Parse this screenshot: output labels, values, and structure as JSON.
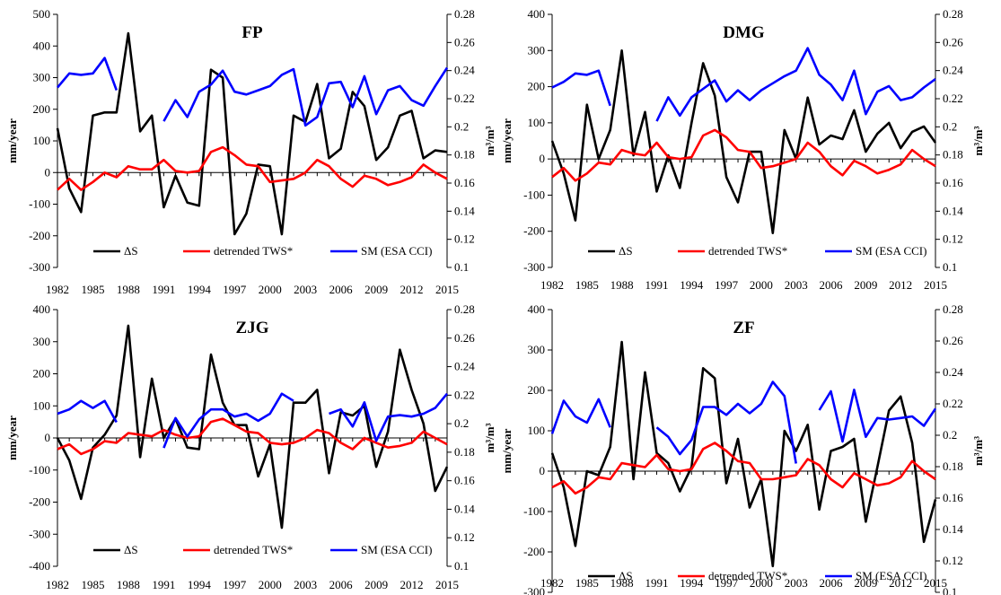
{
  "chart_data": [
    {
      "type": "line",
      "title": "FP",
      "ylabel": "mm/year",
      "y2label": "m³/m³",
      "ylim": [
        -300,
        500
      ],
      "yticks": [
        "-300",
        "-200",
        "-100",
        "0",
        "100",
        "200",
        "300",
        "400",
        "500"
      ],
      "y2lim": [
        0.1,
        0.28
      ],
      "y2ticks": [
        "0.1",
        "0.12",
        "0.14",
        "0.16",
        "0.18",
        "0.2",
        "0.22",
        "0.24",
        "0.26",
        "0.28"
      ],
      "x": [
        1982,
        1983,
        1984,
        1985,
        1986,
        1987,
        1988,
        1989,
        1990,
        1991,
        1992,
        1993,
        1994,
        1995,
        1996,
        1997,
        1998,
        1999,
        2000,
        2001,
        2002,
        2003,
        2004,
        2005,
        2006,
        2007,
        2008,
        2009,
        2010,
        2011,
        2012,
        2013,
        2014,
        2015
      ],
      "xticks": [
        "1982",
        "1985",
        "1988",
        "1991",
        "1994",
        "1997",
        "2000",
        "2003",
        "2006",
        "2009",
        "2012",
        "2015"
      ],
      "series": [
        {
          "name": "ΔS",
          "axis": "left",
          "color": "#000000",
          "values": [
            140,
            -50,
            -125,
            180,
            190,
            190,
            440,
            130,
            180,
            -110,
            -10,
            -95,
            -105,
            325,
            300,
            -195,
            -130,
            25,
            20,
            -195,
            180,
            160,
            280,
            45,
            75,
            255,
            210,
            40,
            80,
            180,
            195,
            45,
            70,
            65
          ]
        },
        {
          "name": "detrended TWS*",
          "axis": "left",
          "color": "#ff0000",
          "values": [
            -55,
            -20,
            -55,
            -30,
            0,
            -15,
            20,
            10,
            10,
            40,
            5,
            0,
            5,
            65,
            80,
            55,
            25,
            20,
            -30,
            -25,
            -20,
            0,
            40,
            20,
            -20,
            -45,
            -10,
            -20,
            -40,
            -30,
            -15,
            25,
            0,
            -20
          ]
        },
        {
          "name": "SM (ESA CCI)",
          "axis": "right",
          "color": "#0000ff",
          "values": [
            0.228,
            0.238,
            0.237,
            0.238,
            0.249,
            0.226,
            null,
            null,
            null,
            0.204,
            0.219,
            0.207,
            0.225,
            0.23,
            0.24,
            0.225,
            0.223,
            0.226,
            0.229,
            0.237,
            0.241,
            0.201,
            0.207,
            0.231,
            0.232,
            0.214,
            0.236,
            0.209,
            0.226,
            0.229,
            0.219,
            0.215,
            0.229,
            0.242
          ]
        }
      ],
      "legend": "bottom"
    },
    {
      "type": "line",
      "title": "DMG",
      "ylabel": "mm/year",
      "y2label": "m³/m³",
      "ylim": [
        -300,
        400
      ],
      "yticks": [
        "-300",
        "-200",
        "-100",
        "0",
        "100",
        "200",
        "300",
        "400"
      ],
      "y2lim": [
        0.1,
        0.28
      ],
      "y2ticks": [
        "0.1",
        "0.12",
        "0.14",
        "0.16",
        "0.18",
        "0.2",
        "0.22",
        "0.24",
        "0.26",
        "0.28"
      ],
      "x": [
        1982,
        1983,
        1984,
        1985,
        1986,
        1987,
        1988,
        1989,
        1990,
        1991,
        1992,
        1993,
        1994,
        1995,
        1996,
        1997,
        1998,
        1999,
        2000,
        2001,
        2002,
        2003,
        2004,
        2005,
        2006,
        2007,
        2008,
        2009,
        2010,
        2011,
        2012,
        2013,
        2014,
        2015
      ],
      "xticks": [
        "1982",
        "1985",
        "1988",
        "1991",
        "1994",
        "1997",
        "2000",
        "2003",
        "2006",
        "2009",
        "2012",
        "2015"
      ],
      "series": [
        {
          "name": "ΔS",
          "axis": "left",
          "color": "#000000",
          "values": [
            50,
            -40,
            -170,
            150,
            0,
            80,
            300,
            10,
            130,
            -90,
            10,
            -80,
            100,
            265,
            175,
            -50,
            -120,
            20,
            20,
            -205,
            80,
            0,
            170,
            40,
            65,
            55,
            135,
            20,
            70,
            100,
            30,
            75,
            90,
            45
          ]
        },
        {
          "name": "detrended TWS*",
          "axis": "left",
          "color": "#ff0000",
          "values": [
            -50,
            -25,
            -60,
            -40,
            -10,
            -15,
            25,
            15,
            10,
            45,
            5,
            0,
            5,
            65,
            80,
            60,
            25,
            20,
            -25,
            -20,
            -10,
            0,
            45,
            20,
            -20,
            -45,
            -5,
            -20,
            -40,
            -30,
            -15,
            25,
            0,
            -20
          ]
        },
        {
          "name": "SM (ESA CCI)",
          "axis": "right",
          "color": "#0000ff",
          "values": [
            0.228,
            0.232,
            0.238,
            0.237,
            0.24,
            0.215,
            null,
            null,
            null,
            0.204,
            0.221,
            0.208,
            0.221,
            0.227,
            0.233,
            0.218,
            0.226,
            0.219,
            0.226,
            0.231,
            0.236,
            0.24,
            0.256,
            0.237,
            0.23,
            0.219,
            0.24,
            0.209,
            0.225,
            0.229,
            0.219,
            0.221,
            0.228,
            0.234
          ]
        }
      ],
      "legend": "bottom"
    },
    {
      "type": "line",
      "title": "ZJG",
      "ylabel": "mm/year",
      "y2label": "m³/m³",
      "ylim": [
        -400,
        400
      ],
      "yticks": [
        "-400",
        "-300",
        "-200",
        "-100",
        "0",
        "100",
        "200",
        "300",
        "400"
      ],
      "y2lim": [
        0.1,
        0.28
      ],
      "y2ticks": [
        "0.1",
        "0.12",
        "0.14",
        "0.16",
        "0.18",
        "0.2",
        "0.22",
        "0.24",
        "0.26",
        "0.28"
      ],
      "x": [
        1982,
        1983,
        1984,
        1985,
        1986,
        1987,
        1988,
        1989,
        1990,
        1991,
        1992,
        1993,
        1994,
        1995,
        1996,
        1997,
        1998,
        1999,
        2000,
        2001,
        2002,
        2003,
        2004,
        2005,
        2006,
        2007,
        2008,
        2009,
        2010,
        2011,
        2012,
        2013,
        2014,
        2015
      ],
      "xticks": [
        "1982",
        "1985",
        "1988",
        "1991",
        "1994",
        "1997",
        "2000",
        "2003",
        "2006",
        "2009",
        "2012",
        "2015"
      ],
      "series": [
        {
          "name": "ΔS",
          "axis": "left",
          "color": "#000000",
          "values": [
            0,
            -70,
            -190,
            -30,
            10,
            70,
            350,
            -60,
            185,
            0,
            60,
            -30,
            -35,
            260,
            110,
            40,
            40,
            -120,
            -20,
            -280,
            110,
            110,
            150,
            -110,
            80,
            70,
            100,
            -90,
            20,
            275,
            150,
            45,
            -165,
            -90
          ]
        },
        {
          "name": "detrended TWS*",
          "axis": "left",
          "color": "#ff0000",
          "values": [
            -35,
            -20,
            -50,
            -35,
            -10,
            -15,
            15,
            10,
            5,
            25,
            10,
            0,
            5,
            50,
            60,
            40,
            20,
            15,
            -15,
            -20,
            -15,
            0,
            25,
            15,
            -15,
            -35,
            0,
            -15,
            -30,
            -25,
            -15,
            20,
            0,
            -20
          ]
        },
        {
          "name": "SM (ESA CCI)",
          "axis": "right",
          "color": "#0000ff",
          "values": [
            0.207,
            0.21,
            0.216,
            0.211,
            0.216,
            0.201,
            null,
            null,
            null,
            0.183,
            0.204,
            0.191,
            0.203,
            0.21,
            0.21,
            0.205,
            0.207,
            0.202,
            0.207,
            0.221,
            0.216,
            null,
            null,
            0.207,
            0.21,
            0.198,
            0.215,
            0.188,
            0.205,
            0.206,
            0.205,
            0.207,
            0.211,
            0.221
          ]
        }
      ],
      "legend": "bottom"
    },
    {
      "type": "line",
      "title": "ZF",
      "ylabel": "mm/year",
      "y2label": "m³/m³",
      "ylim": [
        -300,
        400
      ],
      "yticks": [
        "-300",
        "-200",
        "-100",
        "0",
        "100",
        "200",
        "300",
        "400"
      ],
      "y2lim": [
        0.1,
        0.28
      ],
      "y2ticks": [
        "0.1",
        "0.12",
        "0.14",
        "0.16",
        "0.18",
        "0.2",
        "0.22",
        "0.24",
        "0.26",
        "0.28"
      ],
      "x": [
        1982,
        1983,
        1984,
        1985,
        1986,
        1987,
        1988,
        1989,
        1990,
        1991,
        1992,
        1993,
        1994,
        1995,
        1996,
        1997,
        1998,
        1999,
        2000,
        2001,
        2002,
        2003,
        2004,
        2005,
        2006,
        2007,
        2008,
        2009,
        2010,
        2011,
        2012,
        2013,
        2014,
        2015
      ],
      "xticks": [
        "1982",
        "1985",
        "1988",
        "1991",
        "1994",
        "1997",
        "2000",
        "2003",
        "2006",
        "2009",
        "2012",
        "2015"
      ],
      "series": [
        {
          "name": "ΔS",
          "axis": "left",
          "color": "#000000",
          "values": [
            45,
            -40,
            -185,
            0,
            -10,
            60,
            320,
            -20,
            245,
            45,
            20,
            -50,
            10,
            255,
            230,
            -30,
            80,
            -90,
            -20,
            -235,
            100,
            50,
            115,
            -95,
            50,
            60,
            80,
            -125,
            10,
            150,
            185,
            70,
            -175,
            -70
          ]
        },
        {
          "name": "detrended TWS*",
          "axis": "left",
          "color": "#ff0000",
          "values": [
            -40,
            -25,
            -55,
            -40,
            -15,
            -20,
            20,
            15,
            10,
            40,
            5,
            0,
            5,
            55,
            70,
            50,
            25,
            20,
            -20,
            -20,
            -15,
            -10,
            30,
            15,
            -20,
            -40,
            -5,
            -20,
            -35,
            -30,
            -15,
            25,
            0,
            -20
          ]
        },
        {
          "name": "SM (ESA CCI)",
          "axis": "right",
          "color": "#0000ff",
          "values": [
            0.201,
            0.222,
            0.212,
            0.208,
            0.223,
            0.205,
            null,
            null,
            null,
            0.205,
            0.199,
            0.188,
            0.197,
            0.218,
            0.218,
            0.213,
            0.22,
            0.214,
            0.22,
            0.234,
            0.225,
            0.182,
            null,
            0.216,
            0.228,
            0.196,
            0.229,
            0.199,
            0.211,
            0.21,
            0.211,
            0.212,
            0.206,
            0.217
          ]
        }
      ],
      "legend": "bottom"
    }
  ]
}
